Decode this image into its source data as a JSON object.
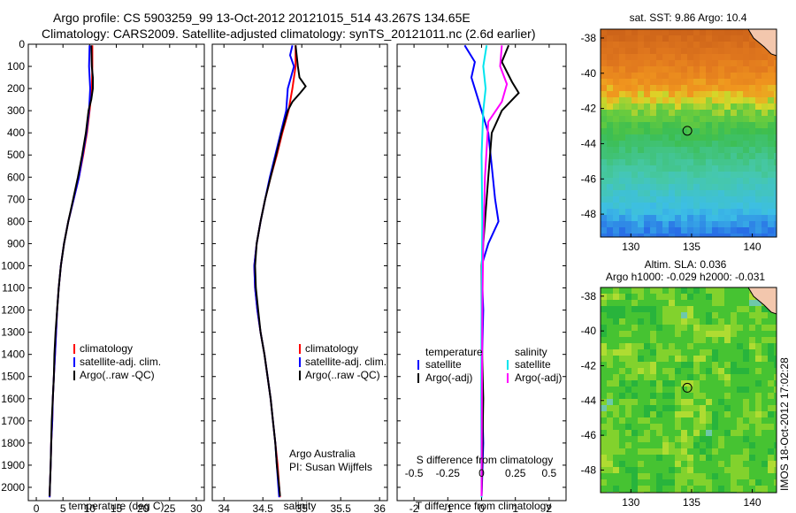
{
  "header": {
    "title_line1": "Argo profile: CS 5903259_99 13-Oct-2012 20121015_514 43.267S 134.65E",
    "title_line2": "Climatology: CARS2009. Satellite-adjusted climatology: synTS_20121011.nc (2.6d earlier)"
  },
  "credit": {
    "org": "Argo Australia",
    "pi": "PI: Susan Wijffels"
  },
  "imos_stamp": "IMOS 18-Oct-2012 17:02:28",
  "colors": {
    "climatology": "#ff0000",
    "satellite": "#0000ff",
    "argo": "#000000",
    "sat_diff_S": "#00e5ee",
    "argo_diff_S": "#ff00ff"
  },
  "chart_data": [
    {
      "type": "line",
      "xlabel": "temperature (deg C)",
      "ylabel": "",
      "xlim": [
        -1.5,
        31.5
      ],
      "xticks": [
        0,
        5,
        10,
        15,
        20,
        25,
        30
      ],
      "ylim": [
        2060,
        0
      ],
      "yticks": [
        0,
        100,
        200,
        300,
        400,
        500,
        600,
        700,
        800,
        900,
        1000,
        1100,
        1200,
        1300,
        1400,
        1500,
        1600,
        1700,
        1800,
        1900,
        2000
      ],
      "legend": {
        "placement": "lower-middle",
        "entries": [
          "climatology",
          "satellite-adj. clim.",
          "Argo(..raw -QC)"
        ]
      },
      "series": [
        {
          "name": "climatology",
          "color": "#ff0000",
          "points": [
            [
              10.5,
              5
            ],
            [
              10.5,
              100
            ],
            [
              10.4,
              200
            ],
            [
              10.0,
              300
            ],
            [
              9.5,
              400
            ],
            [
              8.8,
              500
            ],
            [
              8.0,
              600
            ],
            [
              7.0,
              700
            ],
            [
              6.0,
              800
            ],
            [
              5.2,
              900
            ],
            [
              4.6,
              1000
            ],
            [
              4.2,
              1100
            ],
            [
              3.9,
              1200
            ],
            [
              3.7,
              1300
            ],
            [
              3.5,
              1400
            ],
            [
              3.3,
              1500
            ],
            [
              3.1,
              1600
            ],
            [
              3.0,
              1700
            ],
            [
              2.8,
              1800
            ],
            [
              2.7,
              1900
            ],
            [
              2.55,
              2000
            ],
            [
              2.5,
              2045
            ]
          ]
        },
        {
          "name": "satellite-adj. clim.",
          "color": "#0000ff",
          "points": [
            [
              10.0,
              5
            ],
            [
              9.9,
              100
            ],
            [
              10.1,
              200
            ],
            [
              9.9,
              300
            ],
            [
              9.4,
              400
            ],
            [
              8.7,
              500
            ],
            [
              8.0,
              600
            ],
            [
              7.0,
              700
            ],
            [
              6.0,
              800
            ],
            [
              5.2,
              900
            ],
            [
              4.6,
              1000
            ],
            [
              4.2,
              1100
            ],
            [
              3.9,
              1200
            ],
            [
              3.7,
              1300
            ],
            [
              3.5,
              1400
            ],
            [
              3.3,
              1500
            ],
            [
              3.1,
              1600
            ],
            [
              3.0,
              1700
            ],
            [
              2.8,
              1800
            ],
            [
              2.7,
              1900
            ],
            [
              2.55,
              2000
            ],
            [
              2.5,
              2045
            ]
          ]
        },
        {
          "name": "Argo(..raw -QC)",
          "color": "#000000",
          "points": [
            [
              10.3,
              5
            ],
            [
              10.4,
              100
            ],
            [
              10.6,
              150
            ],
            [
              10.6,
              200
            ],
            [
              10.3,
              250
            ],
            [
              9.8,
              300
            ],
            [
              9.3,
              400
            ],
            [
              8.6,
              500
            ],
            [
              7.8,
              600
            ],
            [
              6.9,
              700
            ],
            [
              6.0,
              800
            ],
            [
              5.2,
              900
            ],
            [
              4.6,
              1000
            ],
            [
              4.2,
              1100
            ],
            [
              3.9,
              1200
            ],
            [
              3.6,
              1300
            ],
            [
              3.4,
              1400
            ],
            [
              3.3,
              1500
            ],
            [
              3.1,
              1600
            ],
            [
              2.9,
              1700
            ],
            [
              2.8,
              1800
            ],
            [
              2.7,
              1900
            ],
            [
              2.55,
              2000
            ],
            [
              2.5,
              2040
            ]
          ]
        }
      ]
    },
    {
      "type": "line",
      "xlabel": "salinity",
      "xlim": [
        33.85,
        36.1
      ],
      "xticks": [
        34,
        34.5,
        35,
        35.5,
        36
      ],
      "ylim": [
        2060,
        0
      ],
      "legend": {
        "placement": "lower-middle",
        "entries": [
          "climatology",
          "satellite-adj. clim.",
          "Argo(..raw -QC)"
        ]
      },
      "series": [
        {
          "name": "climatology",
          "color": "#ff0000",
          "points": [
            [
              34.92,
              5
            ],
            [
              34.92,
              100
            ],
            [
              34.88,
              200
            ],
            [
              34.83,
              300
            ],
            [
              34.75,
              400
            ],
            [
              34.68,
              500
            ],
            [
              34.6,
              600
            ],
            [
              34.53,
              700
            ],
            [
              34.47,
              800
            ],
            [
              34.42,
              900
            ],
            [
              34.39,
              1000
            ],
            [
              34.4,
              1100
            ],
            [
              34.43,
              1200
            ],
            [
              34.47,
              1300
            ],
            [
              34.52,
              1400
            ],
            [
              34.56,
              1500
            ],
            [
              34.6,
              1600
            ],
            [
              34.63,
              1700
            ],
            [
              34.66,
              1800
            ],
            [
              34.69,
              1900
            ],
            [
              34.71,
              2000
            ],
            [
              34.72,
              2045
            ]
          ]
        },
        {
          "name": "satellite-adj. clim.",
          "color": "#0000ff",
          "points": [
            [
              34.88,
              5
            ],
            [
              34.85,
              50
            ],
            [
              34.9,
              100
            ],
            [
              34.86,
              150
            ],
            [
              34.82,
              200
            ],
            [
              34.8,
              300
            ],
            [
              34.73,
              400
            ],
            [
              34.66,
              500
            ],
            [
              34.59,
              600
            ],
            [
              34.53,
              700
            ],
            [
              34.47,
              800
            ],
            [
              34.42,
              900
            ],
            [
              34.39,
              1000
            ],
            [
              34.4,
              1100
            ],
            [
              34.43,
              1200
            ],
            [
              34.47,
              1300
            ],
            [
              34.52,
              1400
            ],
            [
              34.56,
              1500
            ],
            [
              34.6,
              1600
            ],
            [
              34.63,
              1700
            ],
            [
              34.66,
              1800
            ],
            [
              34.68,
              1900
            ],
            [
              34.7,
              2000
            ],
            [
              34.71,
              2045
            ]
          ]
        },
        {
          "name": "Argo(..raw -QC)",
          "color": "#000000",
          "points": [
            [
              34.92,
              5
            ],
            [
              34.95,
              100
            ],
            [
              34.97,
              150
            ],
            [
              35.05,
              190
            ],
            [
              34.98,
              220
            ],
            [
              34.88,
              260
            ],
            [
              34.82,
              300
            ],
            [
              34.74,
              400
            ],
            [
              34.67,
              500
            ],
            [
              34.6,
              600
            ],
            [
              34.53,
              700
            ],
            [
              34.47,
              800
            ],
            [
              34.42,
              900
            ],
            [
              34.4,
              1000
            ],
            [
              34.41,
              1100
            ],
            [
              34.44,
              1200
            ],
            [
              34.47,
              1300
            ],
            [
              34.52,
              1400
            ],
            [
              34.56,
              1500
            ],
            [
              34.6,
              1600
            ],
            [
              34.63,
              1700
            ],
            [
              34.66,
              1800
            ],
            [
              34.68,
              1900
            ],
            [
              34.71,
              2000
            ],
            [
              34.72,
              2040
            ]
          ]
        }
      ]
    },
    {
      "type": "line",
      "xlabel": "T difference from climatology",
      "xlabel_top": "S difference from climatology",
      "xlim": [
        -2.5,
        2.5
      ],
      "xticks": [
        -2,
        -1,
        0,
        1,
        2
      ],
      "xticks_top": [
        -0.5,
        -0.25,
        0,
        0.25,
        0.5
      ],
      "ylim": [
        2060,
        0
      ],
      "legend": {
        "placement": "lower-middle",
        "temperature_heading": "temperature",
        "salinity_heading": "salinity",
        "temperature_entries": [
          "satellite",
          "Argo(-adj)"
        ],
        "salinity_entries": [
          "satellite",
          "Argo(-adj)"
        ]
      },
      "series": [
        {
          "name": "temperature satellite",
          "color": "#0000ff",
          "points": [
            [
              -0.5,
              5
            ],
            [
              -0.2,
              80
            ],
            [
              -0.3,
              150
            ],
            [
              -0.1,
              250
            ],
            [
              0.2,
              400
            ],
            [
              0.3,
              550
            ],
            [
              0.4,
              700
            ],
            [
              0.5,
              800
            ],
            [
              0.2,
              900
            ],
            [
              0.0,
              1000
            ],
            [
              0.05,
              1200
            ],
            [
              0.0,
              1500
            ],
            [
              0.05,
              1800
            ],
            [
              0.0,
              2045
            ]
          ]
        },
        {
          "name": "temperature Argo(-adj)",
          "color": "#000000",
          "points": [
            [
              0.8,
              5
            ],
            [
              0.6,
              80
            ],
            [
              0.9,
              170
            ],
            [
              1.1,
              220
            ],
            [
              0.6,
              300
            ],
            [
              0.3,
              400
            ],
            [
              0.2,
              600
            ],
            [
              0.1,
              800
            ],
            [
              0.0,
              1000
            ],
            [
              0.0,
              1300
            ],
            [
              0.05,
              1600
            ],
            [
              0.0,
              2040
            ]
          ]
        },
        {
          "name": "salinity satellite",
          "color": "#00e5ee",
          "points": [
            [
              0.15,
              5
            ],
            [
              0.05,
              100
            ],
            [
              0.12,
              200
            ],
            [
              0.05,
              300
            ],
            [
              0.0,
              500
            ],
            [
              0.02,
              800
            ],
            [
              0.0,
              1200
            ],
            [
              -0.01,
              1600
            ],
            [
              0.0,
              2045
            ]
          ]
        },
        {
          "name": "salinity Argo(-adj)",
          "color": "#ff00ff",
          "points": [
            [
              0.6,
              5
            ],
            [
              0.55,
              100
            ],
            [
              0.75,
              180
            ],
            [
              0.6,
              260
            ],
            [
              0.2,
              350
            ],
            [
              0.1,
              600
            ],
            [
              0.05,
              900
            ],
            [
              0.02,
              1200
            ],
            [
              0.01,
              1600
            ],
            [
              0.0,
              2040
            ]
          ]
        }
      ]
    },
    {
      "type": "heatmap",
      "title": "sat. SST: 9.86  Argo: 10.4",
      "xlim": [
        127.5,
        142
      ],
      "ylim": [
        -49.3,
        -37.5
      ],
      "xticks": [
        130,
        135,
        140
      ],
      "yticks": [
        -38,
        -40,
        -42,
        -44,
        -46,
        -48
      ],
      "marker": {
        "lon": 134.65,
        "lat": -43.267
      },
      "field_description": "warm orange north of ~42S, yellow band ~42S, green 42-45S, cyan/blue south of 46S"
    },
    {
      "type": "heatmap",
      "title": "Altim. SLA: 0.036",
      "subtitle": "Argo h1000: -0.029  h2000: -0.031",
      "xlim": [
        127.5,
        142
      ],
      "ylim": [
        -49.3,
        -37.5
      ],
      "xticks": [
        130,
        135,
        140
      ],
      "yticks": [
        -38,
        -40,
        -42,
        -44,
        -46,
        -48
      ],
      "marker": {
        "lon": 134.65,
        "lat": -43.267
      }
    }
  ]
}
